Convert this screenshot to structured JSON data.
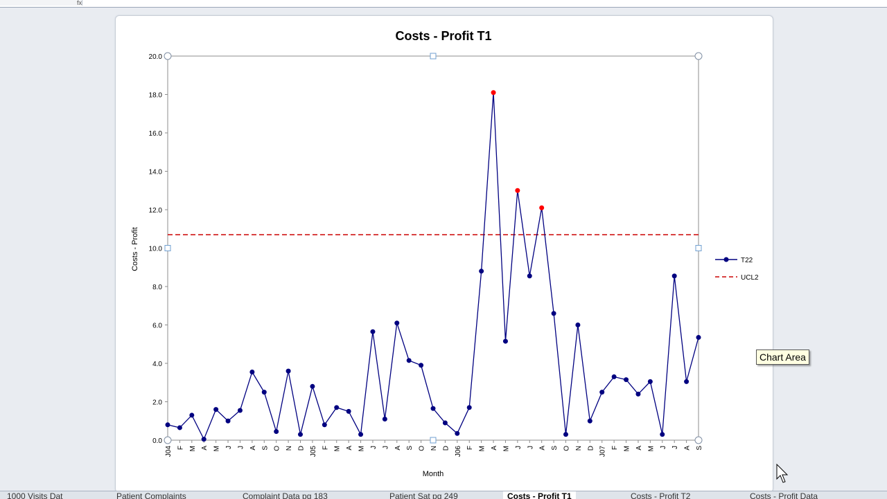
{
  "formula_bar": {
    "fx_label": "fx"
  },
  "tooltip": "Chart Area",
  "sheet_tabs": [
    {
      "label": "1000 Visits Dat"
    },
    {
      "label": "Patient Complaints"
    },
    {
      "label": "Complaint Data pg 183"
    },
    {
      "label": "Patient Sat pg 249"
    },
    {
      "label": "Costs - Profit T1",
      "active": true
    },
    {
      "label": "Costs - Profit T2"
    },
    {
      "label": "Costs - Profit Data"
    }
  ],
  "colors": {
    "series": "#000080",
    "ucl": "#cc0000",
    "signal": "#ff0000"
  },
  "chart_data": {
    "type": "line",
    "title": "Costs  - Profit  T1",
    "xlabel": "Month",
    "ylabel": "Costs  - Profit",
    "ylim": [
      0,
      20
    ],
    "yticks": [
      "0.0",
      "2.0",
      "4.0",
      "6.0",
      "8.0",
      "10.0",
      "12.0",
      "14.0",
      "16.0",
      "18.0",
      "20.0"
    ],
    "categories": [
      "J04",
      "F",
      "M",
      "A",
      "M",
      "J",
      "J",
      "A",
      "S",
      "O",
      "N",
      "D",
      "J05",
      "F",
      "M",
      "A",
      "M",
      "J",
      "J",
      "A",
      "S",
      "O",
      "N",
      "D",
      "J06",
      "F",
      "M",
      "A",
      "M",
      "J",
      "J",
      "A",
      "S",
      "O",
      "N",
      "D",
      "J07",
      "F",
      "M",
      "A",
      "M",
      "J",
      "J",
      "A",
      "S"
    ],
    "series": [
      {
        "name": "T22",
        "values": [
          0.8,
          0.65,
          1.3,
          0.05,
          1.6,
          1.0,
          1.55,
          3.55,
          2.5,
          0.45,
          3.6,
          0.3,
          2.8,
          0.8,
          1.7,
          1.5,
          0.3,
          5.65,
          1.1,
          6.1,
          4.15,
          3.9,
          1.65,
          0.9,
          0.35,
          1.7,
          8.8,
          18.1,
          5.15,
          13.0,
          8.55,
          12.1,
          6.6,
          0.3,
          6.0,
          1.0,
          2.5,
          3.3,
          3.15,
          2.4,
          3.05,
          0.3,
          8.55,
          3.05,
          5.35
        ],
        "signals": [
          27,
          29,
          31
        ]
      }
    ],
    "ucl": {
      "name": "UCL2",
      "value": 10.7
    },
    "legend_position": "right",
    "grid": false
  }
}
